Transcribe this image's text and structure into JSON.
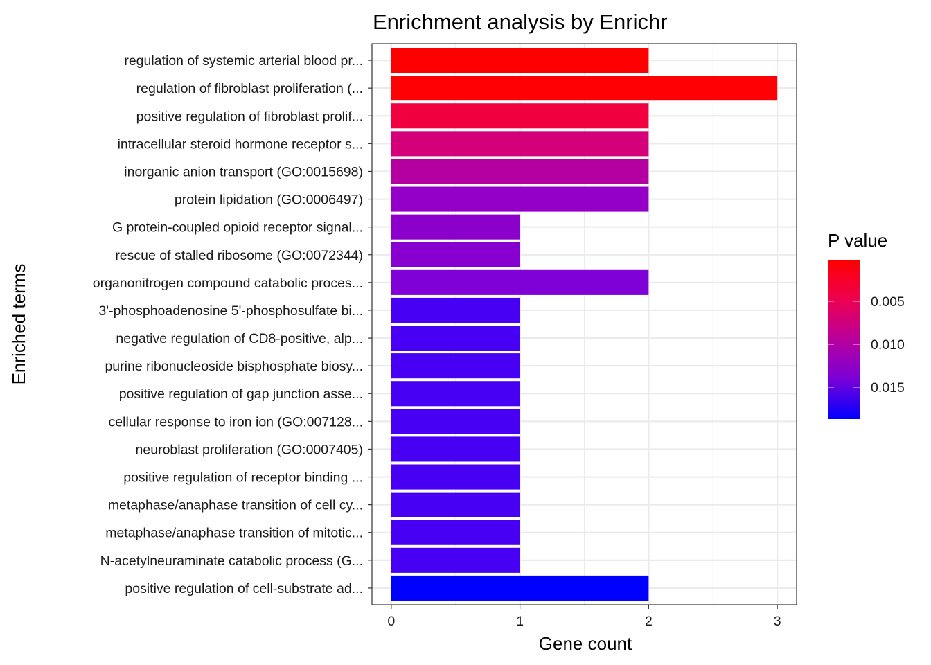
{
  "chart_data": {
    "type": "bar",
    "orientation": "horizontal",
    "title": "Enrichment analysis by Enrichr",
    "xlabel": "Gene count",
    "ylabel": "Enriched terms",
    "xlim": [
      -0.15,
      3.15
    ],
    "xticks": [
      0,
      1,
      2,
      3
    ],
    "grid": true,
    "categories": [
      "regulation of systemic arterial blood pr...",
      "regulation of fibroblast proliferation (...",
      "positive regulation of fibroblast prolif...",
      "intracellular steroid hormone receptor s...",
      "inorganic anion transport (GO:0015698)",
      "protein lipidation (GO:0006497)",
      "G protein-coupled opioid receptor signal...",
      "rescue of stalled ribosome (GO:0072344)",
      "organonitrogen compound catabolic proces...",
      "3'-phosphoadenosine 5'-phosphosulfate bi...",
      "negative regulation of CD8-positive, alp...",
      "purine ribonucleoside bisphosphate biosy...",
      "positive regulation of gap junction asse...",
      "cellular response to iron ion (GO:007128...",
      "neuroblast proliferation (GO:0007405)",
      "positive regulation of receptor binding ...",
      "metaphase/anaphase transition of cell cy...",
      "metaphase/anaphase transition of mitotic...",
      "N-acetylneuraminate catabolic process (G...",
      "positive regulation of cell-substrate ad..."
    ],
    "values": [
      2,
      3,
      2,
      2,
      2,
      2,
      1,
      1,
      2,
      1,
      1,
      1,
      1,
      1,
      1,
      1,
      1,
      1,
      1,
      2
    ],
    "p_values": [
      0.0002,
      0.0003,
      0.0014,
      0.0028,
      0.005,
      0.0073,
      0.0079,
      0.0083,
      0.009,
      0.0145,
      0.0145,
      0.0145,
      0.0145,
      0.0145,
      0.0145,
      0.0145,
      0.0145,
      0.0145,
      0.0145,
      0.0187
    ],
    "bar_colors": [
      "#FF0000",
      "#FF0004",
      "#F0003E",
      "#D4007A",
      "#B400A0",
      "#9400C8",
      "#8C00CC",
      "#8800D0",
      "#8000D8",
      "#4800F4",
      "#4800F4",
      "#4800F4",
      "#4800F4",
      "#4800F4",
      "#4800F4",
      "#4800F4",
      "#4800F4",
      "#4800F4",
      "#4800F4",
      "#0000FF"
    ],
    "legend": {
      "title": "P value",
      "position": "right",
      "type": "colorbar",
      "low_color": "#FF0000",
      "high_color": "#0000FF",
      "range": [
        0.00016,
        0.0187
      ],
      "ticks": [
        0.005,
        0.01,
        0.015
      ],
      "tick_labels": [
        "0.005",
        "0.010",
        "0.015"
      ]
    }
  }
}
